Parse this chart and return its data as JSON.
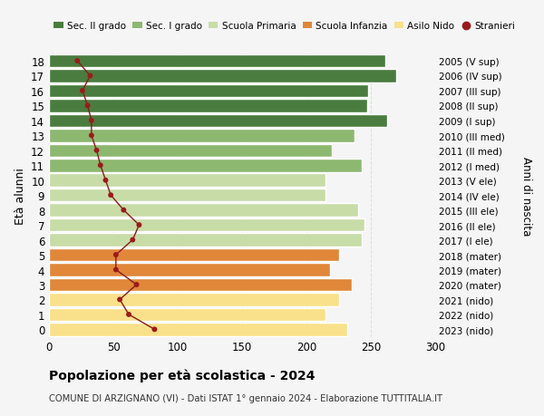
{
  "ages": [
    0,
    1,
    2,
    3,
    4,
    5,
    6,
    7,
    8,
    9,
    10,
    11,
    12,
    13,
    14,
    15,
    16,
    17,
    18
  ],
  "right_labels": [
    "2023 (nido)",
    "2022 (nido)",
    "2021 (nido)",
    "2020 (mater)",
    "2019 (mater)",
    "2018 (mater)",
    "2017 (I ele)",
    "2016 (II ele)",
    "2015 (III ele)",
    "2014 (IV ele)",
    "2013 (V ele)",
    "2012 (I med)",
    "2011 (II med)",
    "2010 (III med)",
    "2009 (I sup)",
    "2008 (II sup)",
    "2007 (III sup)",
    "2006 (IV sup)",
    "2005 (V sup)"
  ],
  "bar_values": [
    232,
    215,
    225,
    235,
    218,
    225,
    243,
    245,
    240,
    215,
    215,
    243,
    220,
    237,
    263,
    247,
    248,
    270,
    261
  ],
  "bar_colors": [
    "#f9e08a",
    "#f9e08a",
    "#f9e08a",
    "#e0873a",
    "#e0873a",
    "#e0873a",
    "#c8dca8",
    "#c8dca8",
    "#c8dca8",
    "#c8dca8",
    "#c8dca8",
    "#8db870",
    "#8db870",
    "#8db870",
    "#4a7c3f",
    "#4a7c3f",
    "#4a7c3f",
    "#4a7c3f",
    "#4a7c3f"
  ],
  "stranieri_values": [
    82,
    62,
    55,
    68,
    52,
    52,
    65,
    70,
    58,
    48,
    44,
    40,
    37,
    33,
    33,
    30,
    26,
    32,
    22
  ],
  "legend_labels": [
    "Sec. II grado",
    "Sec. I grado",
    "Scuola Primaria",
    "Scuola Infanzia",
    "Asilo Nido",
    "Stranieri"
  ],
  "legend_colors": [
    "#4a7c3f",
    "#8db870",
    "#c8dca8",
    "#e0873a",
    "#f9e08a",
    "#9b1a1a"
  ],
  "ylabel": "Età alunni",
  "right_ylabel": "Anni di nascita",
  "title": "Popolazione per età scolastica - 2024",
  "subtitle": "COMUNE DI ARZIGNANO (VI) - Dati ISTAT 1° gennaio 2024 - Elaborazione TUTTITALIA.IT",
  "xlim": [
    0,
    300
  ],
  "xticks": [
    0,
    50,
    100,
    150,
    200,
    250,
    300
  ],
  "bg_color": "#f5f5f5",
  "grid_color": "#dddddd"
}
